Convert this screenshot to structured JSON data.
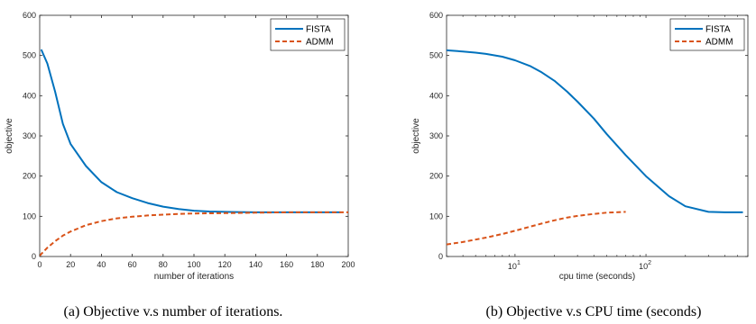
{
  "colors": {
    "fista": "#0072BD",
    "admm": "#D95319",
    "axis": "#262626"
  },
  "captions": {
    "a": "(a) Objective v.s number of iterations.",
    "b": "(b) Objective v.s CPU time (seconds)"
  },
  "chart_data": [
    {
      "type": "line",
      "xlabel": "number of iterations",
      "ylabel": "objective",
      "xlim": [
        0,
        200
      ],
      "ylim": [
        0,
        600
      ],
      "xscale": "linear",
      "xticks": [
        "0",
        "20",
        "40",
        "60",
        "80",
        "100",
        "120",
        "140",
        "160",
        "180",
        "200"
      ],
      "yticks": [
        "0",
        "100",
        "200",
        "300",
        "400",
        "500",
        "600"
      ],
      "legend_position": "top-right",
      "series": [
        {
          "name": "FISTA",
          "style": "solid",
          "x": [
            1,
            5,
            10,
            15,
            20,
            30,
            40,
            50,
            60,
            70,
            80,
            90,
            100,
            110,
            120,
            140,
            160,
            180,
            195
          ],
          "y": [
            515,
            480,
            410,
            330,
            280,
            225,
            185,
            160,
            145,
            133,
            124,
            118,
            114,
            112,
            111,
            110,
            110,
            110,
            110
          ]
        },
        {
          "name": "ADMM",
          "style": "dashed",
          "x": [
            0,
            5,
            10,
            15,
            20,
            30,
            40,
            50,
            60,
            70,
            80,
            90,
            100,
            120,
            140,
            160,
            180,
            200
          ],
          "y": [
            2,
            22,
            38,
            52,
            62,
            78,
            88,
            95,
            99,
            102,
            104,
            106,
            107,
            108,
            109,
            110,
            110,
            110
          ]
        }
      ]
    },
    {
      "type": "line",
      "xlabel": "cpu time (seconds)",
      "ylabel": "objective",
      "xlim": [
        3,
        600
      ],
      "ylim": [
        0,
        600
      ],
      "xscale": "log",
      "yticks": [
        "0",
        "100",
        "200",
        "300",
        "400",
        "500",
        "600"
      ],
      "xticks_major": [
        {
          "value": 10,
          "base": "10",
          "exp": "1"
        },
        {
          "value": 100,
          "base": "10",
          "exp": "2"
        }
      ],
      "legend_position": "top-right",
      "series": [
        {
          "name": "FISTA",
          "style": "solid",
          "x": [
            3,
            4,
            5,
            6,
            8,
            10,
            13,
            16,
            20,
            25,
            30,
            40,
            50,
            70,
            100,
            150,
            200,
            300,
            400,
            550
          ],
          "y": [
            513,
            510,
            507,
            504,
            497,
            488,
            474,
            458,
            437,
            410,
            385,
            343,
            305,
            252,
            200,
            150,
            125,
            111,
            110,
            110
          ]
        },
        {
          "name": "ADMM",
          "style": "dashed",
          "x": [
            3,
            4,
            5,
            6,
            8,
            10,
            13,
            16,
            20,
            25,
            30,
            40,
            50,
            70
          ],
          "y": [
            30,
            36,
            42,
            47,
            56,
            64,
            74,
            82,
            90,
            97,
            101,
            106,
            109,
            111
          ]
        }
      ]
    }
  ]
}
